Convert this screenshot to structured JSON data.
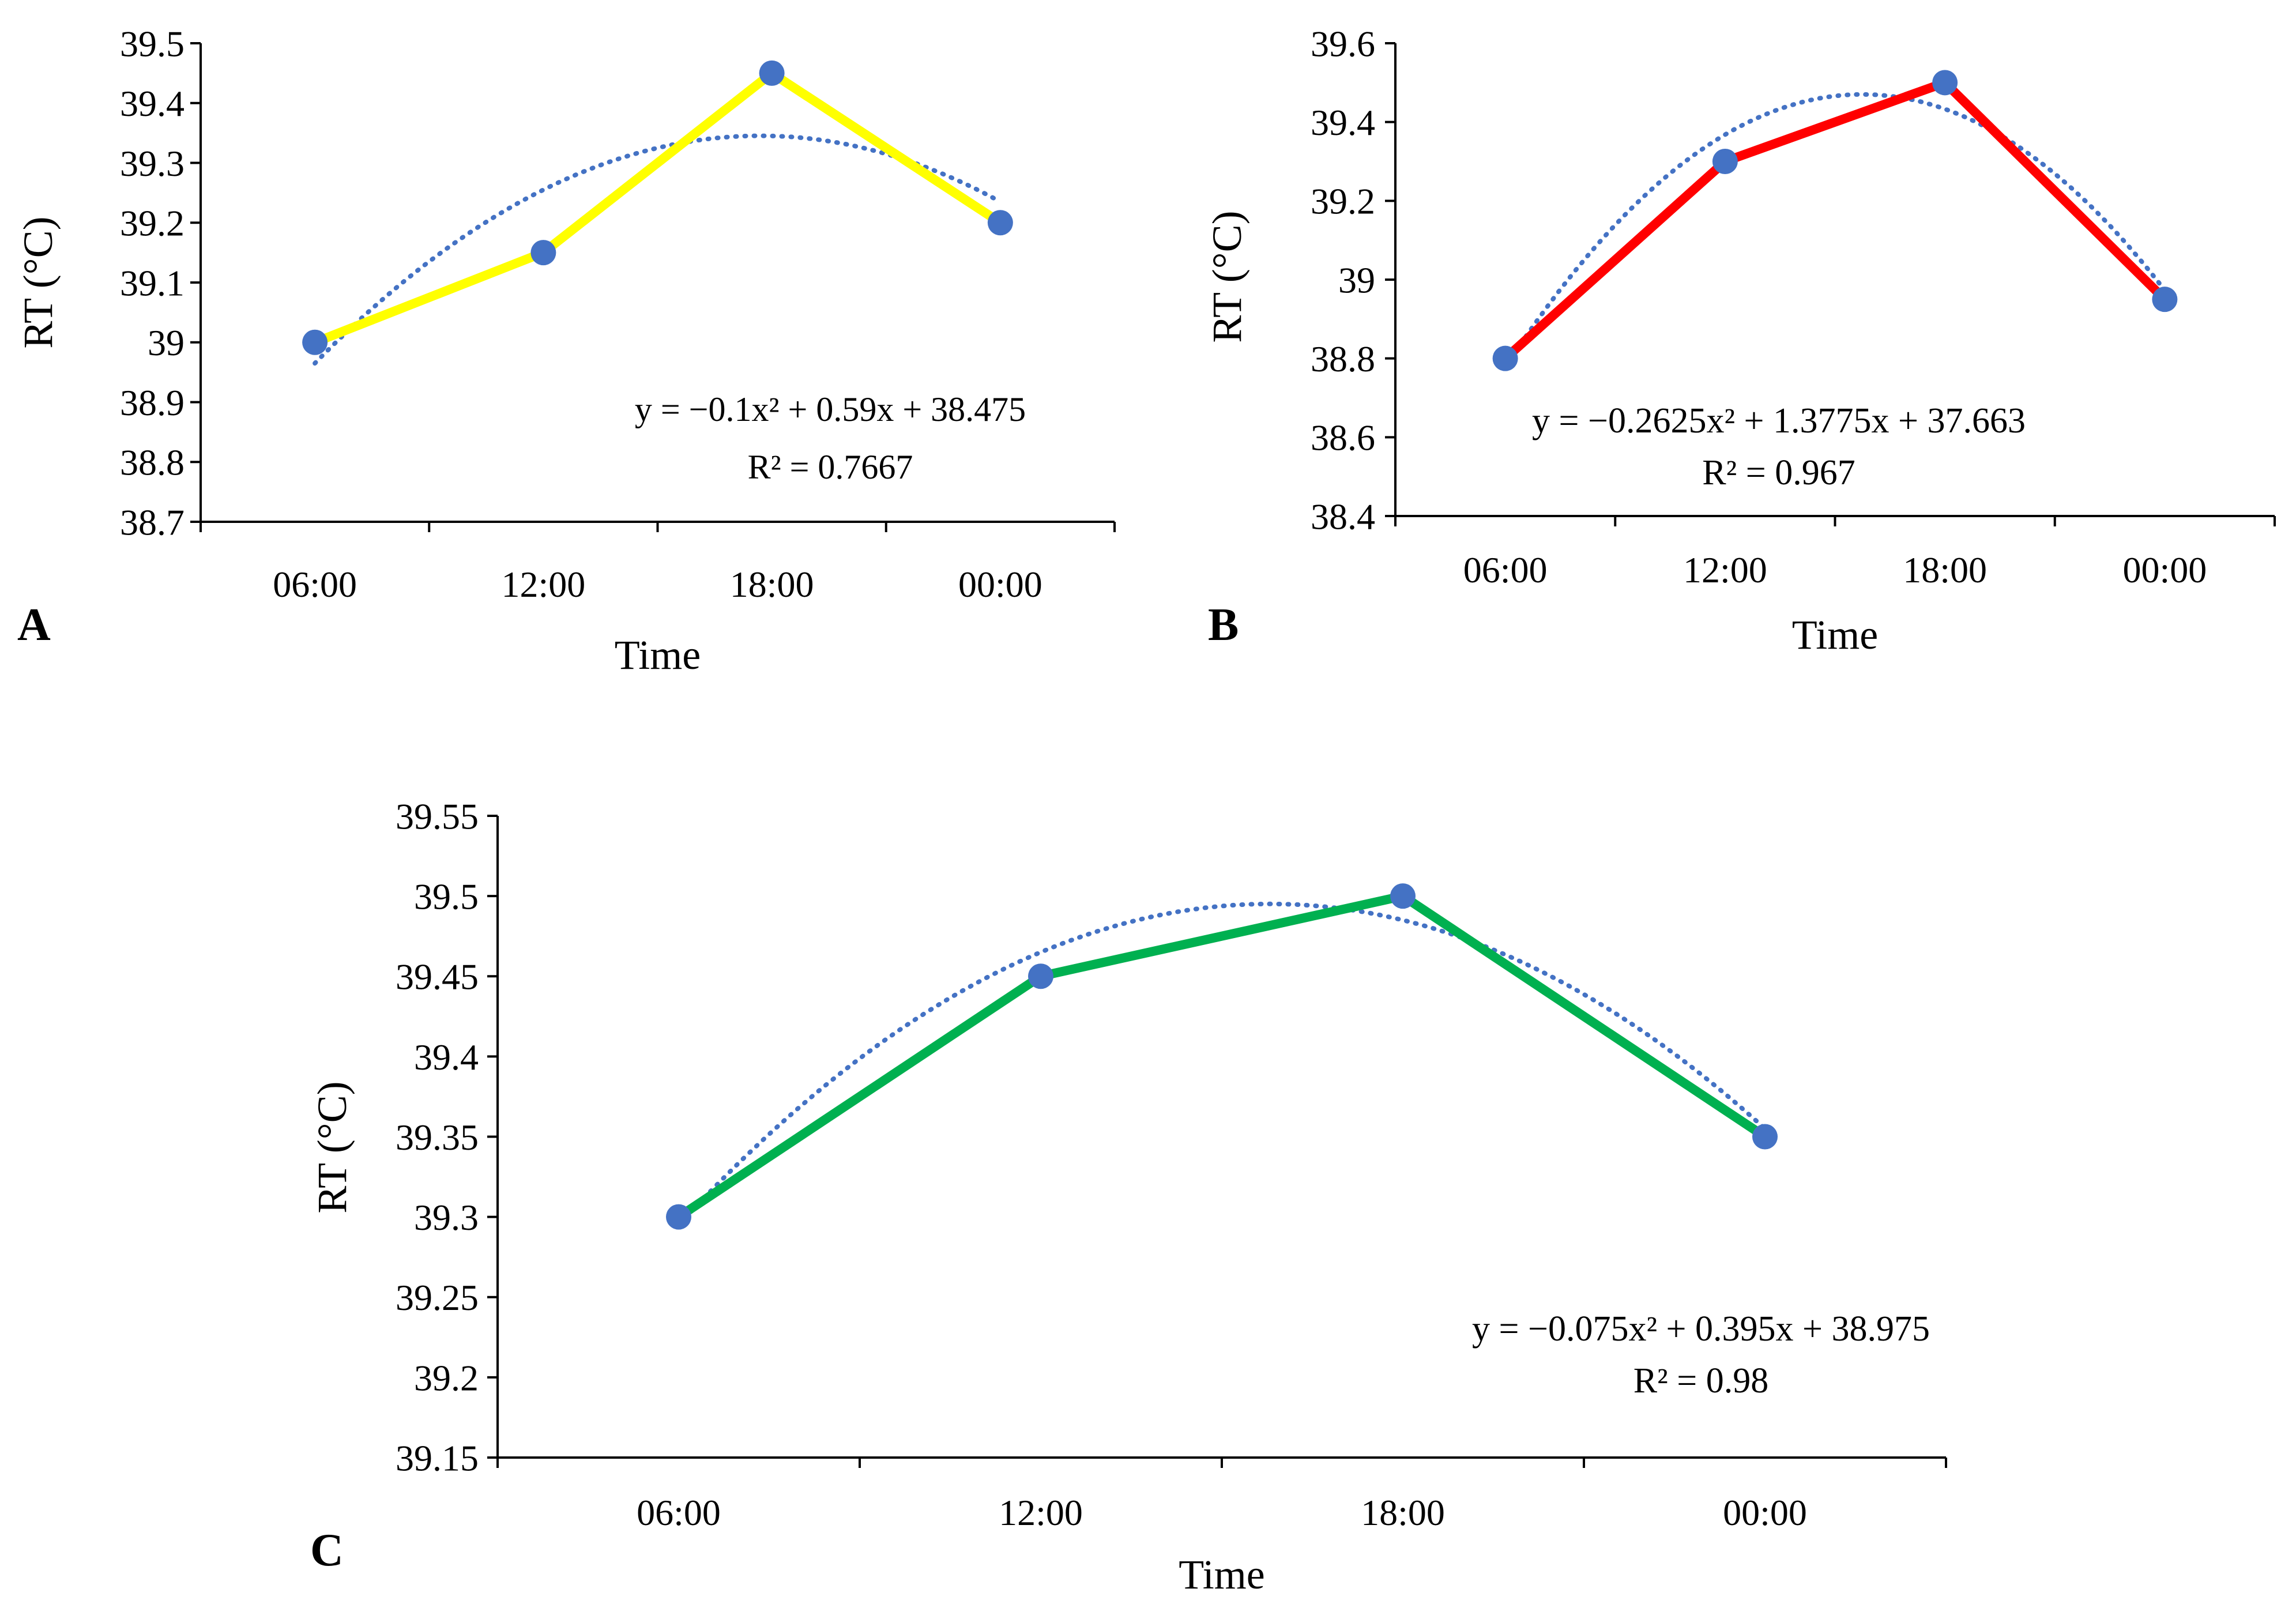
{
  "chart_data": [
    {
      "panel": "A",
      "type": "line",
      "line_color": "#FFFF00",
      "marker_color": "#4472C4",
      "trend_color": "#4472C4",
      "categories": [
        "06:00",
        "12:00",
        "18:00",
        "00:00"
      ],
      "values": [
        39.0,
        39.15,
        39.45,
        39.2
      ],
      "trend": {
        "type": "polynomial",
        "order": 2,
        "coeffs": [
          -0.1,
          0.59,
          38.475
        ]
      },
      "equation": "y = −0.1x² + 0.59x + 38.475",
      "r2": "R² = 0.7667",
      "xlabel": "Time",
      "ylabel": "RT (°C)",
      "ylim": [
        38.7,
        39.5
      ],
      "yticks": [
        "38.7",
        "38.8",
        "38.9",
        "39",
        "39.1",
        "39.2",
        "39.3",
        "39.4",
        "39.5"
      ],
      "grid": false
    },
    {
      "panel": "B",
      "type": "line",
      "line_color": "#FF0000",
      "marker_color": "#4472C4",
      "trend_color": "#4472C4",
      "categories": [
        "06:00",
        "12:00",
        "18:00",
        "00:00"
      ],
      "values": [
        38.8,
        39.3,
        39.5,
        38.95
      ],
      "trend": {
        "type": "polynomial",
        "order": 2,
        "coeffs": [
          -0.2625,
          1.3775,
          37.663
        ]
      },
      "equation": "y = −0.2625x² + 1.3775x + 37.663",
      "r2": "R² = 0.967",
      "xlabel": "Time",
      "ylabel": "RT (°C)",
      "ylim": [
        38.4,
        39.6
      ],
      "yticks": [
        "38.4",
        "38.6",
        "38.8",
        "39",
        "39.2",
        "39.4",
        "39.6"
      ],
      "grid": false
    },
    {
      "panel": "C",
      "type": "line",
      "line_color": "#00B050",
      "marker_color": "#4472C4",
      "trend_color": "#4472C4",
      "categories": [
        "06:00",
        "12:00",
        "18:00",
        "00:00"
      ],
      "values": [
        39.3,
        39.45,
        39.5,
        39.35
      ],
      "trend": {
        "type": "polynomial",
        "order": 2,
        "coeffs": [
          -0.075,
          0.395,
          38.975
        ]
      },
      "equation": "y = −0.075x² + 0.395x + 38.975",
      "r2": "R² = 0.98",
      "xlabel": "Time",
      "ylabel": "RT (°C)",
      "ylim": [
        39.15,
        39.55
      ],
      "yticks": [
        "39.15",
        "39.2",
        "39.25",
        "39.3",
        "39.35",
        "39.4",
        "39.45",
        "39.5",
        "39.55"
      ],
      "grid": false
    }
  ]
}
